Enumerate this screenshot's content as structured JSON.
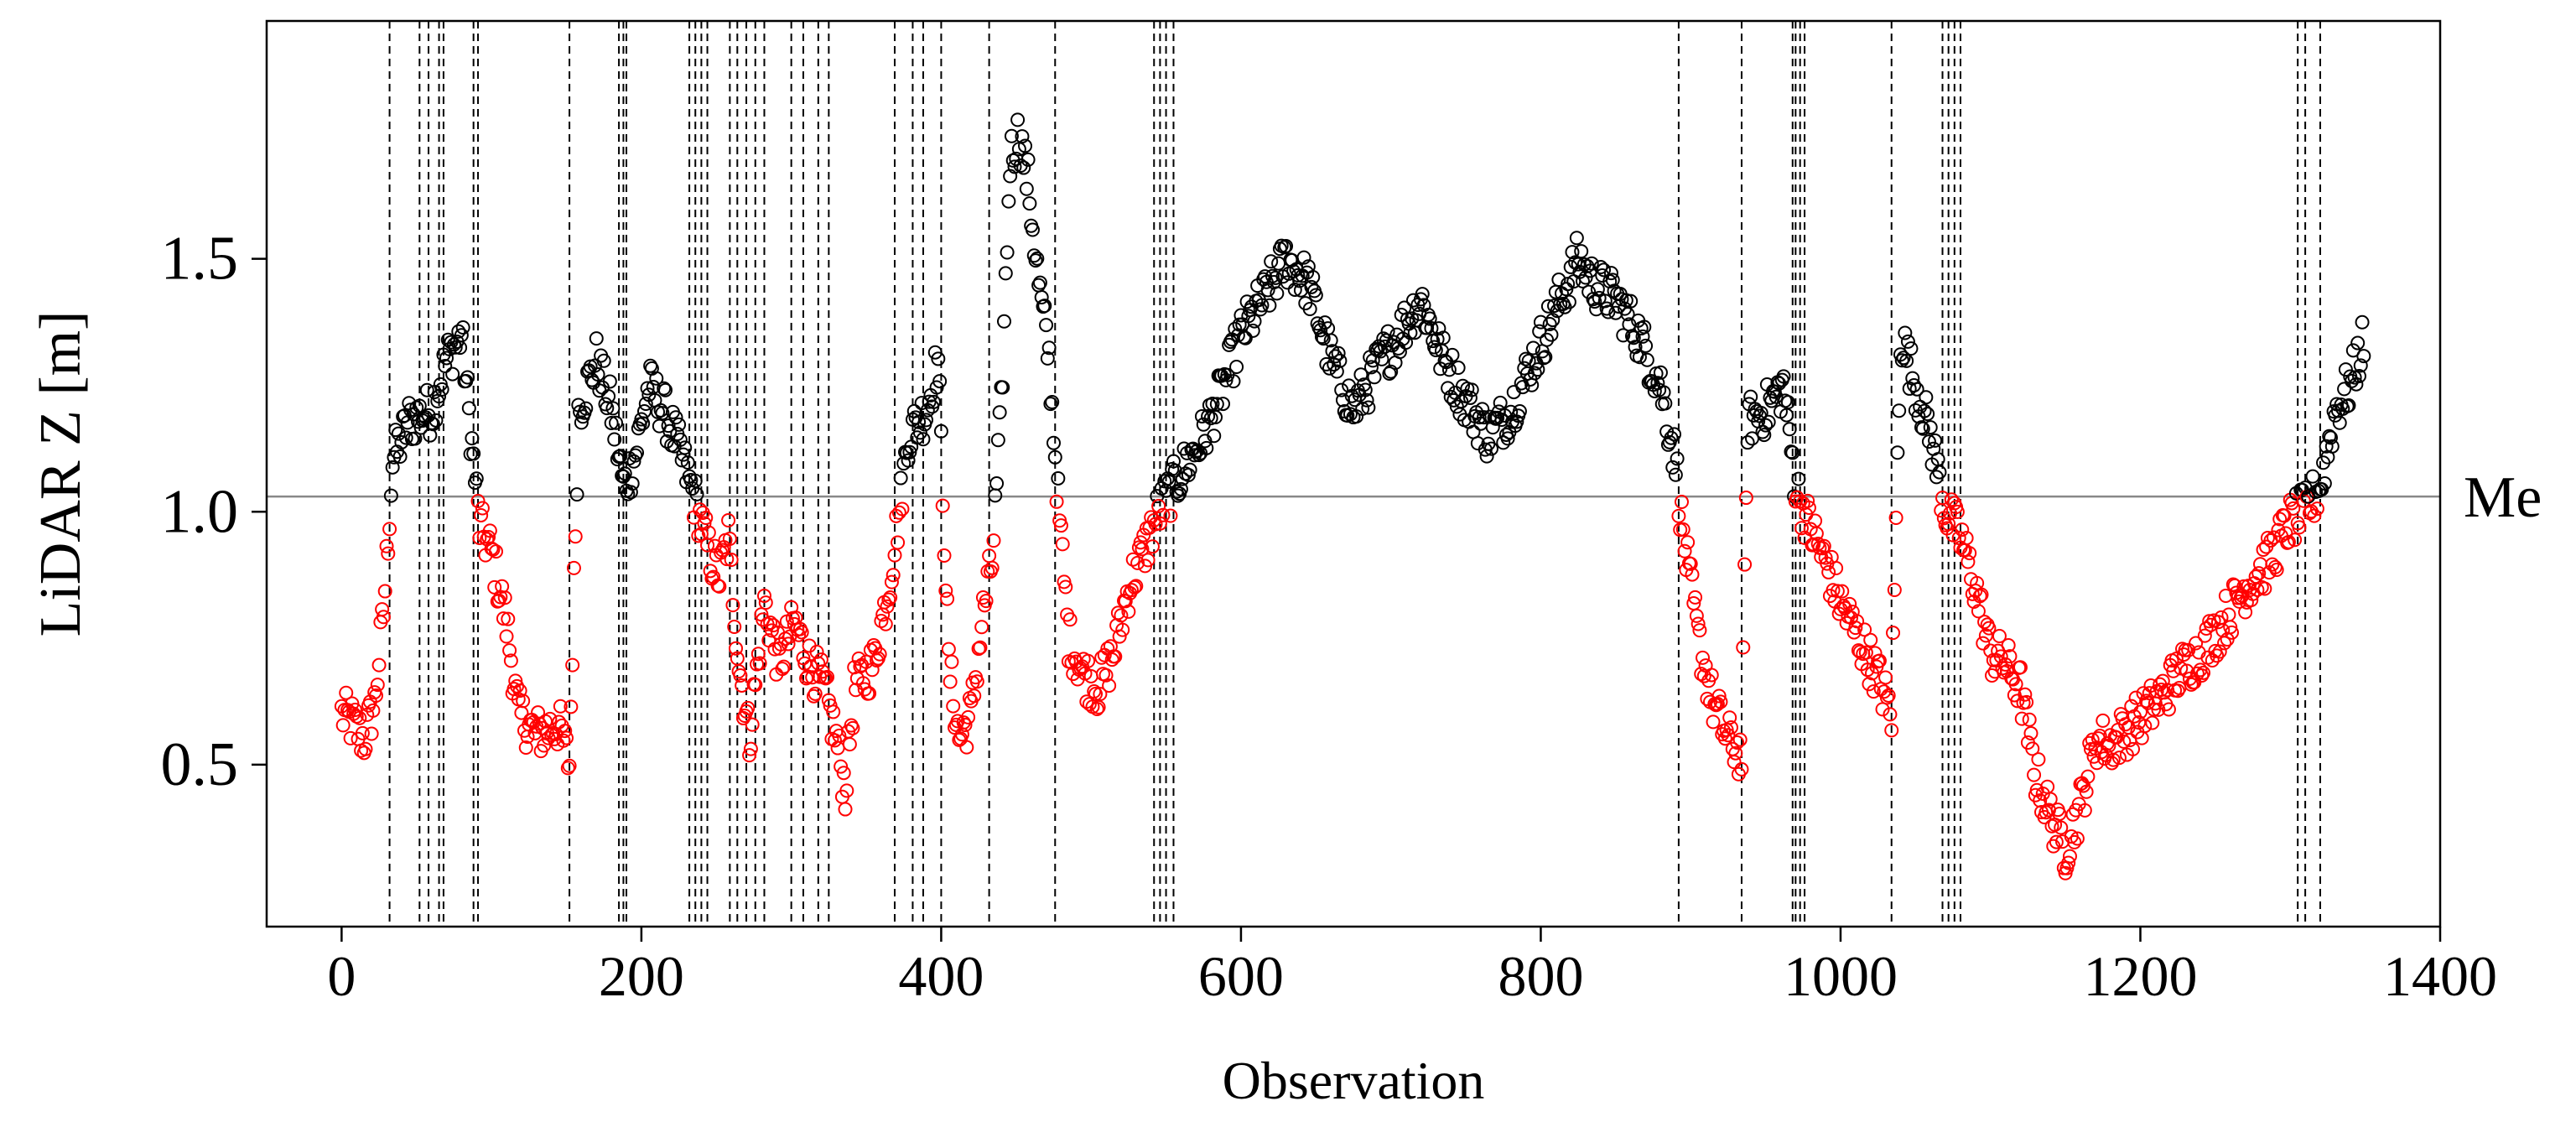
{
  "chart_data": {
    "type": "scatter",
    "title": "",
    "xlabel": "Observation",
    "ylabel": "LiDAR  Z [m]",
    "xlim": [
      -50,
      1400
    ],
    "ylim": [
      0.18,
      1.97
    ],
    "xticks": [
      0,
      200,
      400,
      600,
      800,
      1000,
      1200,
      1400
    ],
    "xtick_labels": [
      "0",
      "200",
      "400",
      "600",
      "800",
      "1000",
      "1200",
      "1400"
    ],
    "yticks": [
      0.5,
      1.0,
      1.5
    ],
    "ytick_labels": [
      "0.5",
      "1.0",
      "1.5"
    ],
    "reference_line": {
      "y": 1.03,
      "label": "Me",
      "color": "#888888"
    },
    "change_points_x": [
      32,
      52,
      58,
      65,
      68,
      88,
      91,
      152,
      185,
      188,
      190,
      232,
      236,
      240,
      244,
      259,
      264,
      270,
      276,
      282,
      300,
      308,
      318,
      325,
      369,
      381,
      388,
      400,
      432,
      476,
      542,
      546,
      550,
      555,
      892,
      934,
      968,
      970,
      973,
      976,
      1034,
      1068,
      1072,
      1076,
      1080,
      1305,
      1310,
      1320
    ],
    "point_colors": {
      "above": "#000000",
      "below": "#ff0000"
    },
    "point_count": 1350
  }
}
